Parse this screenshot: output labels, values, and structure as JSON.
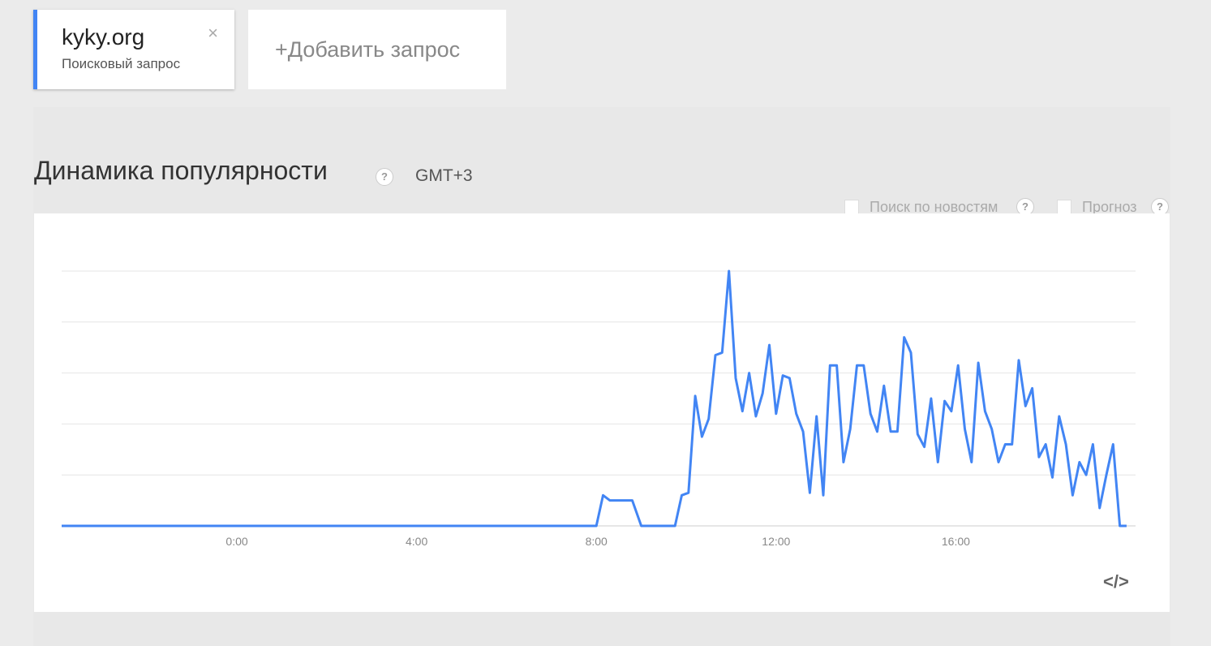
{
  "term_card": {
    "name": "kyky.org",
    "type": "Поисковый запрос",
    "close_icon": "×"
  },
  "add_query": {
    "label": "+Добавить запрос"
  },
  "section": {
    "title": "Динамика популярности",
    "help_icon": "?",
    "timezone": "GMT+3"
  },
  "toggles": [
    {
      "label": "Поиск по новостям",
      "checked": false
    },
    {
      "label": "Прогноз",
      "checked": false
    }
  ],
  "embed_icon": "</>",
  "colors": {
    "accent": "#4285f4",
    "line": "#4285f4",
    "grid": "#e6e6e6",
    "axis": "#cccccc"
  },
  "chart_data": {
    "type": "line",
    "title": "",
    "xlabel": "",
    "ylabel": "",
    "x_unit": "hours (GMT+3)",
    "x_ticks": [
      {
        "x": 0,
        "label": "0:00"
      },
      {
        "x": 4,
        "label": "4:00"
      },
      {
        "x": 8,
        "label": "8:00"
      },
      {
        "x": 12,
        "label": "12:00"
      },
      {
        "x": 16,
        "label": "16:00"
      }
    ],
    "xlim": [
      -3.9,
      20.0
    ],
    "ylim": [
      0,
      100
    ],
    "grid": true,
    "series": [
      {
        "x": [
          -3.9,
          8.0,
          8.15,
          8.3,
          8.8,
          9.0,
          9.5,
          9.75,
          9.9,
          10.05,
          10.2,
          10.35,
          10.5,
          10.65,
          10.8,
          10.95,
          11.1,
          11.25,
          11.4,
          11.55,
          11.7,
          11.85,
          12.0,
          12.15,
          12.3,
          12.45,
          12.6,
          12.75,
          12.9,
          13.05,
          13.2,
          13.35,
          13.5,
          13.65,
          13.8,
          13.95,
          14.1,
          14.25,
          14.4,
          14.55,
          14.7,
          14.85,
          15.0,
          15.15,
          15.3,
          15.45,
          15.6,
          15.75,
          15.9,
          16.05,
          16.2,
          16.35,
          16.5,
          16.65,
          16.8,
          16.95,
          17.1,
          17.25,
          17.4,
          17.55,
          17.7,
          17.85,
          18.0,
          18.15,
          18.3,
          18.45,
          18.6,
          18.75,
          18.9,
          19.05,
          19.2,
          19.35,
          19.5,
          19.65,
          19.8
        ],
        "y": [
          0,
          0,
          12,
          10,
          10,
          0,
          0,
          0,
          12,
          13,
          51,
          35,
          42,
          67,
          68,
          100,
          58,
          45,
          60,
          43,
          52,
          71,
          44,
          59,
          58,
          44,
          37,
          13,
          43,
          12,
          63,
          63,
          25,
          38,
          63,
          63,
          44,
          37,
          55,
          37,
          37,
          74,
          68,
          36,
          31,
          50,
          25,
          49,
          45,
          63,
          38,
          25,
          64,
          45,
          38,
          25,
          32,
          32,
          65,
          47,
          54,
          27,
          32,
          19,
          43,
          32,
          12,
          25,
          20,
          32,
          7,
          20,
          32,
          0,
          0
        ]
      }
    ]
  }
}
